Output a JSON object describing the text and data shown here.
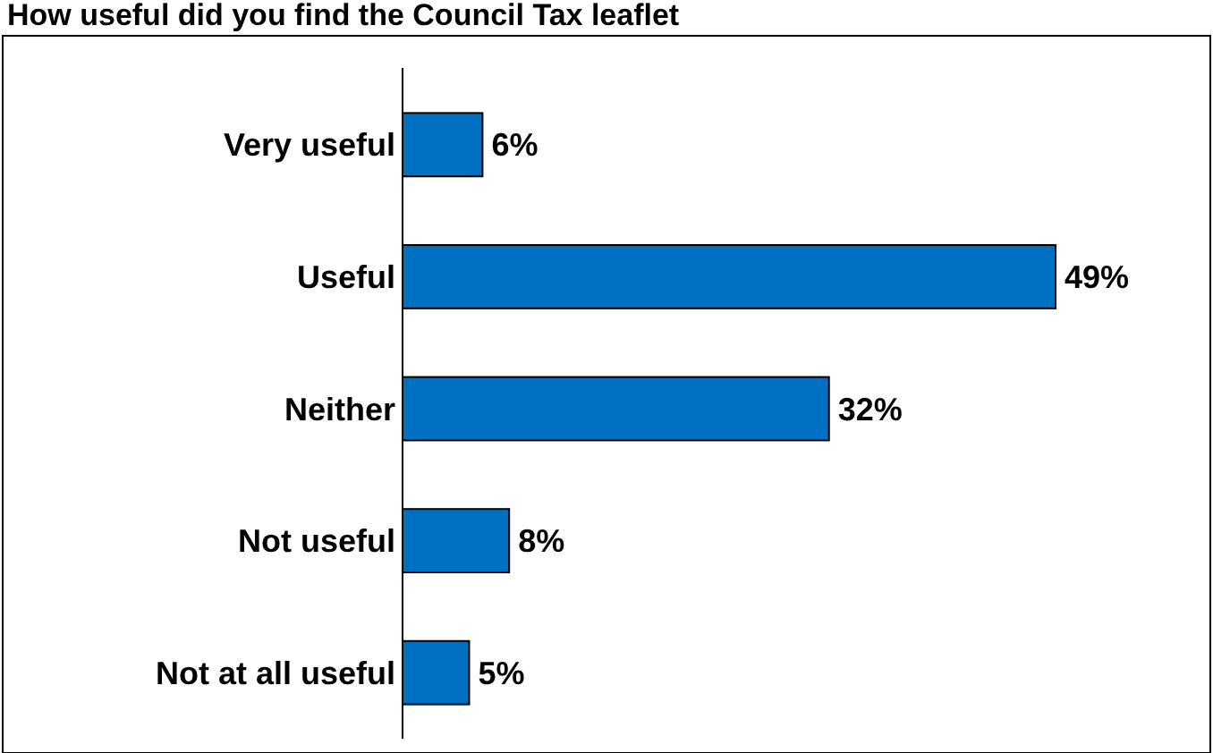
{
  "chart_data": {
    "type": "bar",
    "orientation": "horizontal",
    "title": "How useful did you find the Council Tax leaflet",
    "categories": [
      "Very useful",
      "Useful",
      "Neither",
      "Not useful",
      "Not at all useful"
    ],
    "values": [
      6,
      49,
      32,
      8,
      5
    ],
    "value_labels": [
      "6%",
      "49%",
      "32%",
      "8%",
      "5%"
    ],
    "color": "#0070c0"
  }
}
